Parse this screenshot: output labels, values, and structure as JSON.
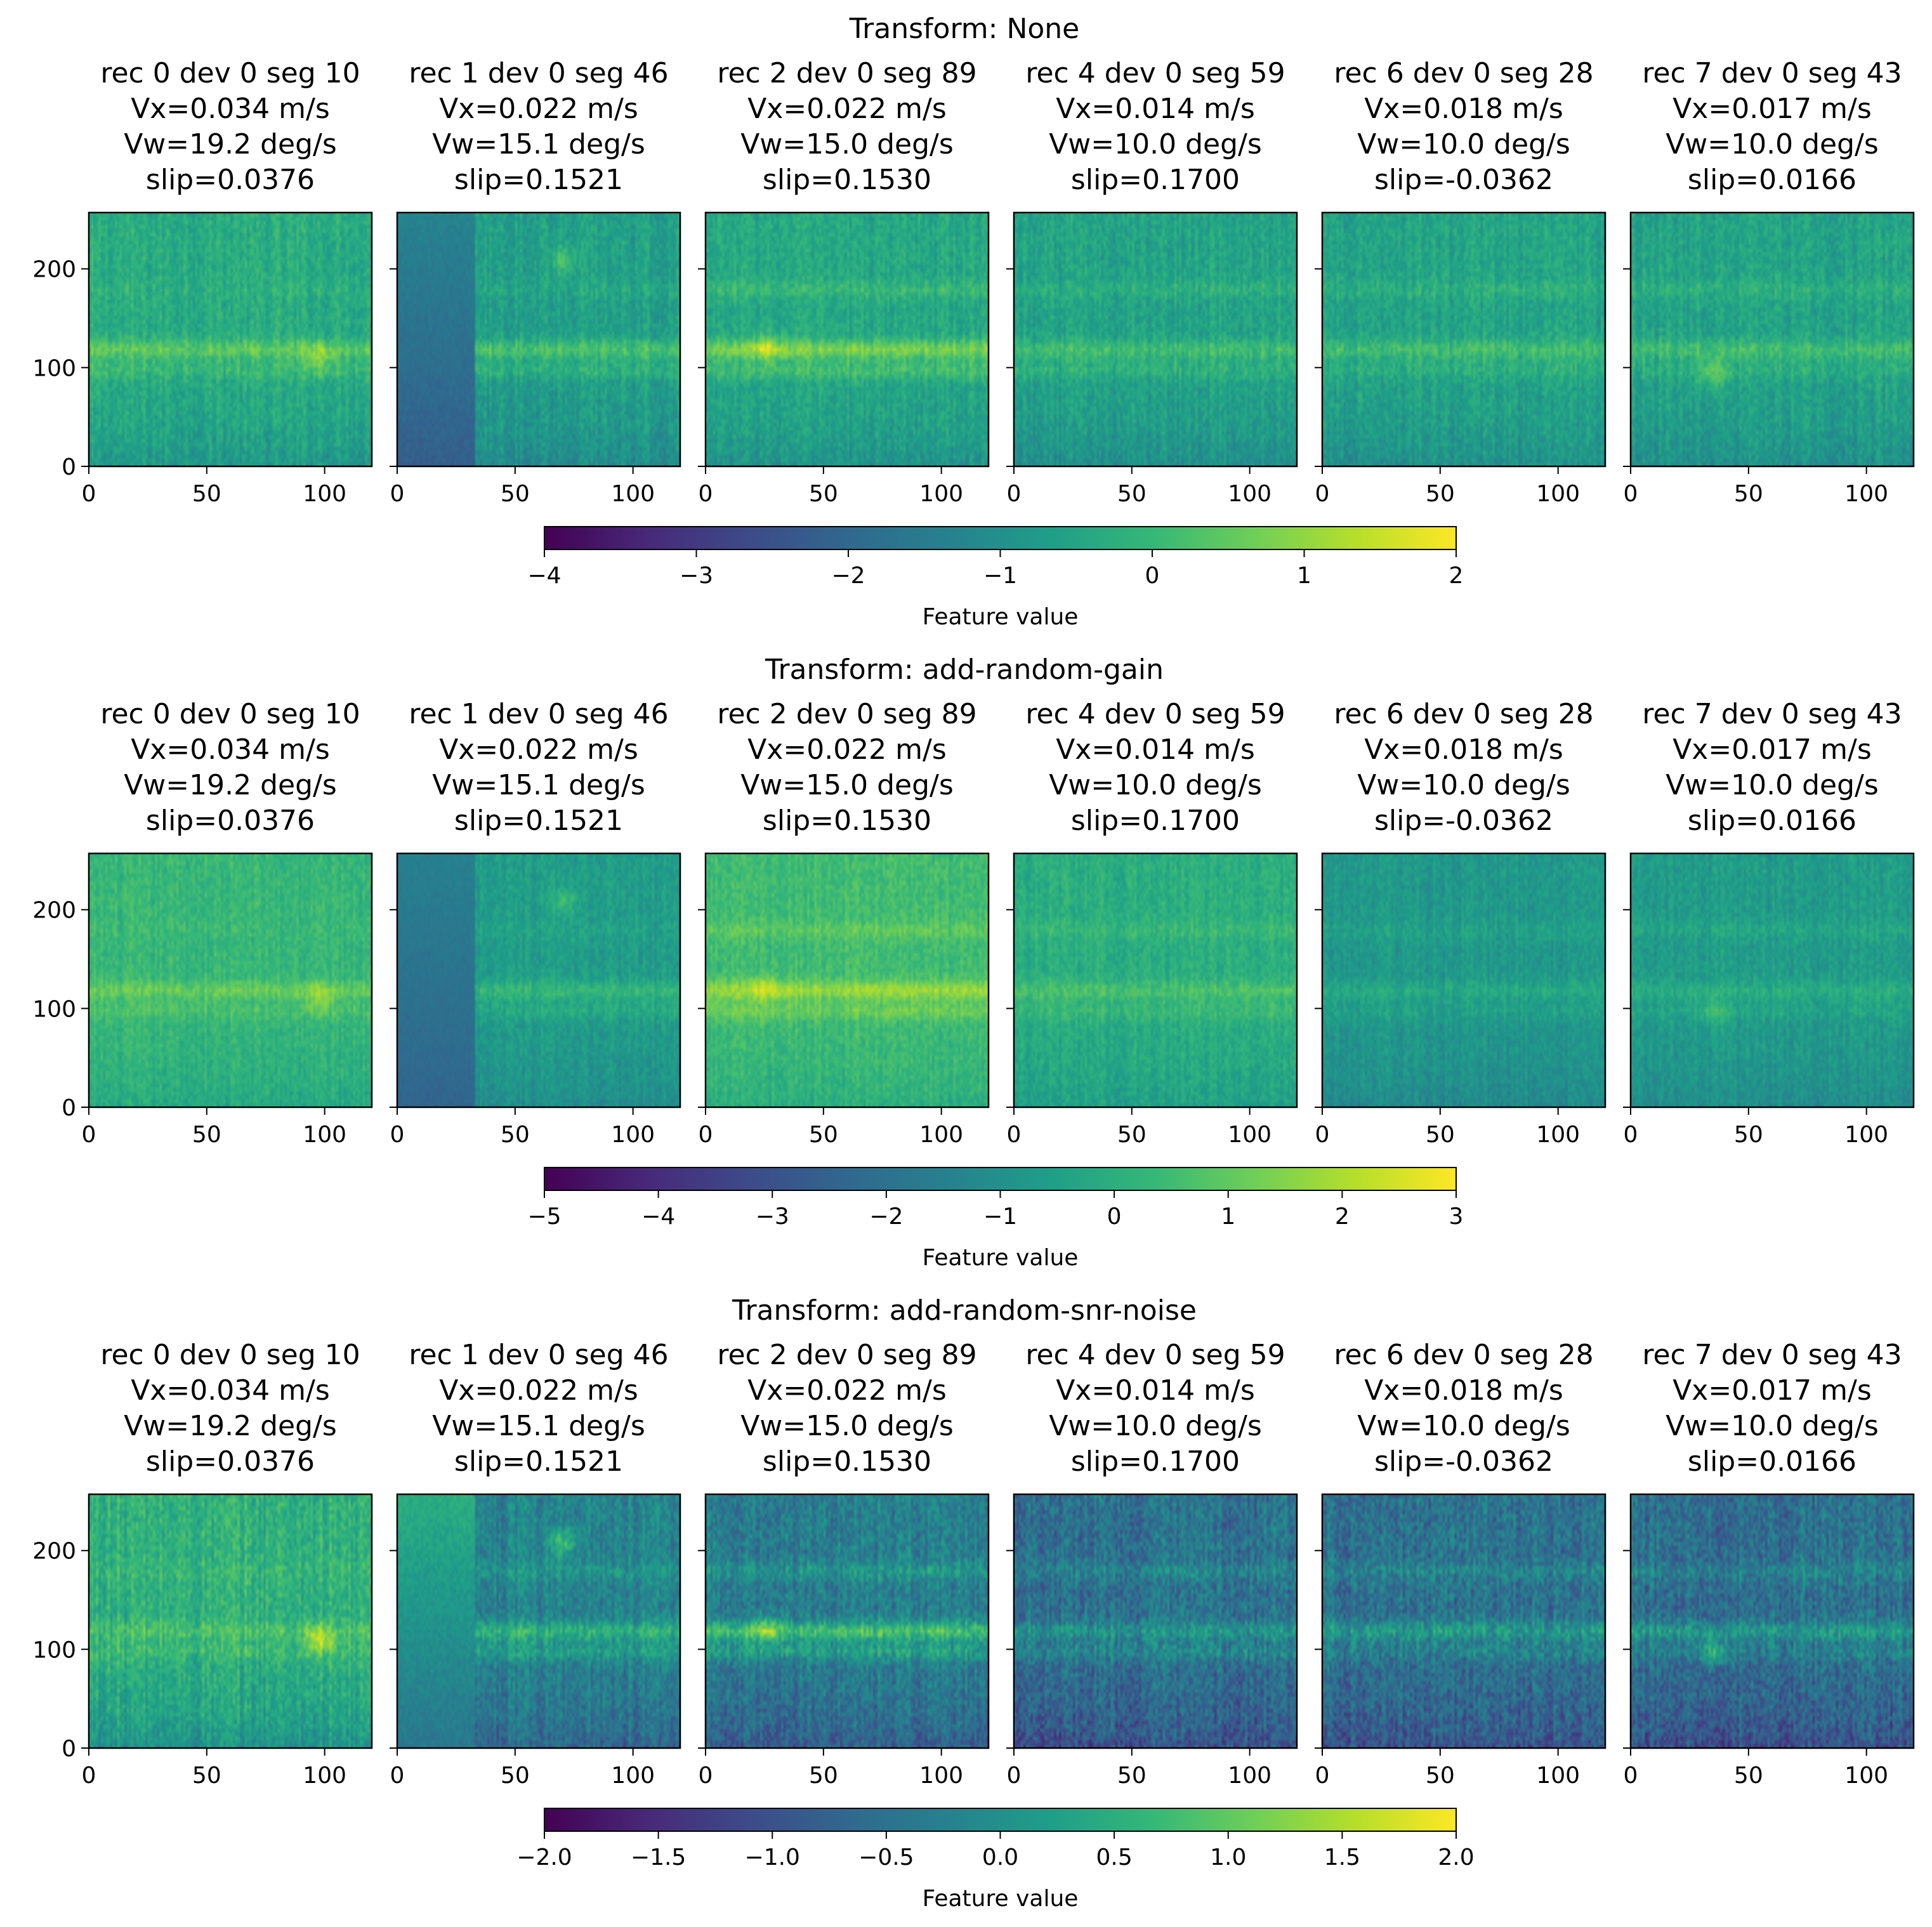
{
  "colors": {
    "colormap": "viridis",
    "viridis_stops": [
      "#440154",
      "#482878",
      "#3e4a89",
      "#31688e",
      "#26828e",
      "#1f9e89",
      "#35b779",
      "#6ece58",
      "#b5de2b",
      "#fde725"
    ],
    "frame": "#000000"
  },
  "chart_data": [
    {
      "type": "heatmap",
      "title": "Transform: None",
      "panels": [
        {
          "title_lines": [
            "rec 0 dev 0 seg 10",
            "Vx=0.034 m/s",
            "Vw=19.2 deg/s",
            "slip=0.0376"
          ],
          "base": -0.3,
          "bands": [
            0.8,
            0.4,
            0.1
          ],
          "dark_until": 0,
          "dark_value": 0,
          "hotspot": [
            97,
            110
          ],
          "noise": 0.35
        },
        {
          "title_lines": [
            "rec 1 dev 0 seg 46",
            "Vx=0.022 m/s",
            "Vw=15.1 deg/s",
            "slip=0.1521"
          ],
          "base": -0.6,
          "bands": [
            0.9,
            0.5,
            0.2
          ],
          "dark_until": 33,
          "dark_value": -2.2,
          "hotspot": [
            70,
            210
          ],
          "noise": 0.35
        },
        {
          "title_lines": [
            "rec 2 dev 0 seg 89",
            "Vx=0.022 m/s",
            "Vw=15.0 deg/s",
            "slip=0.1530"
          ],
          "base": -0.4,
          "bands": [
            1.2,
            0.6,
            0.4
          ],
          "dark_until": 0,
          "dark_value": 0,
          "hotspot": [
            25,
            120
          ],
          "noise": 0.35
        },
        {
          "title_lines": [
            "rec 4 dev 0 seg 59",
            "Vx=0.014 m/s",
            "Vw=10.0 deg/s",
            "slip=0.1700"
          ],
          "base": -0.5,
          "bands": [
            0.7,
            0.4,
            0.3
          ],
          "dark_until": 0,
          "dark_value": 0,
          "hotspot": [
            0,
            0
          ],
          "noise": 0.35
        },
        {
          "title_lines": [
            "rec 6 dev 0 seg 28",
            "Vx=0.018 m/s",
            "Vw=10.0 deg/s",
            "slip=-0.0362"
          ],
          "base": -0.5,
          "bands": [
            0.7,
            0.3,
            0.3
          ],
          "dark_until": 0,
          "dark_value": 0,
          "hotspot": [
            0,
            0
          ],
          "noise": 0.35
        },
        {
          "title_lines": [
            "rec 7 dev 0 seg 43",
            "Vx=0.017 m/s",
            "Vw=10.0 deg/s",
            "slip=0.0166"
          ],
          "base": -0.5,
          "bands": [
            0.7,
            0.3,
            0.3
          ],
          "dark_until": 0,
          "dark_value": 0,
          "hotspot": [
            35,
            95
          ],
          "noise": 0.35
        }
      ],
      "x_ticks": [
        "0",
        "50",
        "100"
      ],
      "x_tick_values": [
        0,
        50,
        100
      ],
      "x_range": [
        0,
        120
      ],
      "y_ticks": [
        "0",
        "100",
        "200"
      ],
      "y_tick_values": [
        0,
        100,
        200
      ],
      "y_range": [
        0,
        257
      ],
      "colorbar": {
        "label": "Feature value",
        "range": [
          -4,
          2
        ],
        "ticks": [
          "−4",
          "−3",
          "−2",
          "−1",
          "0",
          "1",
          "2"
        ],
        "tick_values": [
          -4,
          -3,
          -2,
          -1,
          0,
          1,
          2
        ]
      }
    },
    {
      "type": "heatmap",
      "title": "Transform: add-random-gain",
      "panels": [
        {
          "title_lines": [
            "rec 0 dev 0 seg 10",
            "Vx=0.034 m/s",
            "Vw=19.2 deg/s",
            "slip=0.0376"
          ],
          "base": 0.3,
          "bands": [
            0.8,
            0.4,
            0.1
          ],
          "dark_until": 0,
          "dark_value": 0,
          "hotspot": [
            97,
            110
          ],
          "noise": 0.4
        },
        {
          "title_lines": [
            "rec 1 dev 0 seg 46",
            "Vx=0.022 m/s",
            "Vw=15.1 deg/s",
            "slip=0.1521"
          ],
          "base": -0.6,
          "bands": [
            0.9,
            0.5,
            0.2
          ],
          "dark_until": 33,
          "dark_value": -2.4,
          "hotspot": [
            70,
            210
          ],
          "noise": 0.4
        },
        {
          "title_lines": [
            "rec 2 dev 0 seg 89",
            "Vx=0.022 m/s",
            "Vw=15.0 deg/s",
            "slip=0.1530"
          ],
          "base": 0.5,
          "bands": [
            1.3,
            0.7,
            0.5
          ],
          "dark_until": 0,
          "dark_value": 0,
          "hotspot": [
            25,
            120
          ],
          "noise": 0.4
        },
        {
          "title_lines": [
            "rec 4 dev 0 seg 59",
            "Vx=0.014 m/s",
            "Vw=10.0 deg/s",
            "slip=0.1700"
          ],
          "base": 0.0,
          "bands": [
            0.7,
            0.4,
            0.3
          ],
          "dark_until": 0,
          "dark_value": 0,
          "hotspot": [
            0,
            0
          ],
          "noise": 0.4
        },
        {
          "title_lines": [
            "rec 6 dev 0 seg 28",
            "Vx=0.018 m/s",
            "Vw=10.0 deg/s",
            "slip=-0.0362"
          ],
          "base": -0.7,
          "bands": [
            0.6,
            0.3,
            0.3
          ],
          "dark_until": 0,
          "dark_value": 0,
          "hotspot": [
            0,
            0
          ],
          "noise": 0.4
        },
        {
          "title_lines": [
            "rec 7 dev 0 seg 43",
            "Vx=0.017 m/s",
            "Vw=10.0 deg/s",
            "slip=0.0166"
          ],
          "base": -0.6,
          "bands": [
            0.6,
            0.3,
            0.3
          ],
          "dark_until": 0,
          "dark_value": 0,
          "hotspot": [
            35,
            95
          ],
          "noise": 0.4
        }
      ],
      "x_ticks": [
        "0",
        "50",
        "100"
      ],
      "x_tick_values": [
        0,
        50,
        100
      ],
      "x_range": [
        0,
        120
      ],
      "y_ticks": [
        "0",
        "100",
        "200"
      ],
      "y_tick_values": [
        0,
        100,
        200
      ],
      "y_range": [
        0,
        257
      ],
      "colorbar": {
        "label": "Feature value",
        "range": [
          -5,
          3
        ],
        "ticks": [
          "−5",
          "−4",
          "−3",
          "−2",
          "−1",
          "0",
          "1",
          "2",
          "3"
        ],
        "tick_values": [
          -5,
          -4,
          -3,
          -2,
          -1,
          0,
          1,
          2,
          3
        ]
      }
    },
    {
      "type": "heatmap",
      "title": "Transform: add-random-snr-noise",
      "panels": [
        {
          "title_lines": [
            "rec 0 dev 0 seg 10",
            "Vx=0.034 m/s",
            "Vw=19.2 deg/s",
            "slip=0.0376"
          ],
          "base": 0.55,
          "bands": [
            0.3,
            0.2,
            0.1
          ],
          "dark_until": 0,
          "dark_value": 0,
          "hotspot": [
            97,
            110
          ],
          "noise": 0.3
        },
        {
          "title_lines": [
            "rec 1 dev 0 seg 46",
            "Vx=0.022 m/s",
            "Vw=15.1 deg/s",
            "slip=0.1521"
          ],
          "base": -0.2,
          "bands": [
            0.8,
            0.5,
            0.3
          ],
          "dark_until": 33,
          "dark_value": -0.4,
          "hotspot": [
            70,
            210
          ],
          "noise": 0.35
        },
        {
          "title_lines": [
            "rec 2 dev 0 seg 89",
            "Vx=0.022 m/s",
            "Vw=15.0 deg/s",
            "slip=0.1530"
          ],
          "base": -0.3,
          "bands": [
            1.1,
            0.6,
            0.4
          ],
          "dark_until": 0,
          "dark_value": 0,
          "hotspot": [
            25,
            120
          ],
          "noise": 0.4
        },
        {
          "title_lines": [
            "rec 4 dev 0 seg 59",
            "Vx=0.014 m/s",
            "Vw=10.0 deg/s",
            "slip=0.1700"
          ],
          "base": -0.5,
          "bands": [
            0.6,
            0.4,
            0.3
          ],
          "dark_until": 0,
          "dark_value": 0,
          "hotspot": [
            0,
            0
          ],
          "noise": 0.45
        },
        {
          "title_lines": [
            "rec 6 dev 0 seg 28",
            "Vx=0.018 m/s",
            "Vw=10.0 deg/s",
            "slip=-0.0362"
          ],
          "base": -0.5,
          "bands": [
            0.7,
            0.3,
            0.3
          ],
          "dark_until": 0,
          "dark_value": 0,
          "hotspot": [
            0,
            0
          ],
          "noise": 0.45
        },
        {
          "title_lines": [
            "rec 7 dev 0 seg 43",
            "Vx=0.017 m/s",
            "Vw=10.0 deg/s",
            "slip=0.0166"
          ],
          "base": -0.5,
          "bands": [
            0.7,
            0.3,
            0.3
          ],
          "dark_until": 0,
          "dark_value": 0,
          "hotspot": [
            35,
            95
          ],
          "noise": 0.45
        }
      ],
      "x_ticks": [
        "0",
        "50",
        "100"
      ],
      "x_tick_values": [
        0,
        50,
        100
      ],
      "x_range": [
        0,
        120
      ],
      "y_ticks": [
        "0",
        "100",
        "200"
      ],
      "y_tick_values": [
        0,
        100,
        200
      ],
      "y_range": [
        0,
        257
      ],
      "colorbar": {
        "label": "Feature value",
        "range": [
          -2,
          2
        ],
        "ticks": [
          "−2.0",
          "−1.5",
          "−1.0",
          "−0.5",
          "0.0",
          "0.5",
          "1.0",
          "1.5",
          "2.0"
        ],
        "tick_values": [
          -2,
          -1.5,
          -1,
          -0.5,
          0,
          0.5,
          1,
          1.5,
          2
        ]
      }
    }
  ]
}
